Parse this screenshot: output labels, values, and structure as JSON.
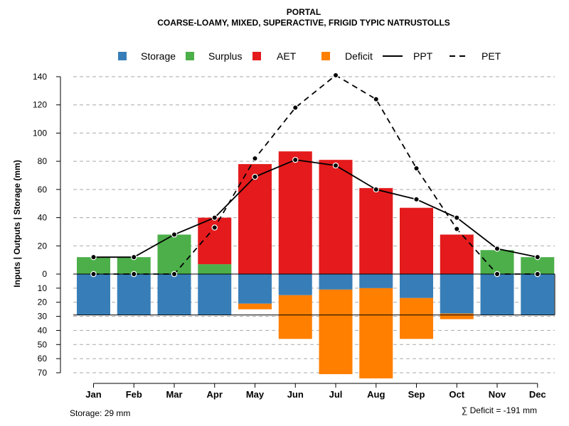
{
  "chart_data": {
    "type": "bar",
    "title": "PORTAL",
    "subtitle": "COARSE-LOAMY, MIXED, SUPERACTIVE, FRIGID TYPIC NATRUSTOLLS",
    "ylabel": "Inputs | Outputs | Storage    (mm)",
    "categories": [
      "Jan",
      "Feb",
      "Mar",
      "Apr",
      "May",
      "Jun",
      "Jul",
      "Aug",
      "Sep",
      "Oct",
      "Nov",
      "Dec"
    ],
    "upper_axis": {
      "ylim": [
        0,
        140
      ],
      "ticks": [
        "140",
        "120",
        "100",
        "80",
        "60",
        "40",
        "20",
        "0"
      ]
    },
    "lower_axis": {
      "ylim": [
        0,
        70
      ],
      "ticks": [
        "10",
        "20",
        "30",
        "40",
        "50",
        "60",
        "70"
      ]
    },
    "series": [
      {
        "name": "Storage",
        "color": "#377EB8",
        "position": "below",
        "values": [
          29,
          29,
          29,
          29,
          21,
          15,
          11,
          10,
          17,
          28,
          29,
          29
        ]
      },
      {
        "name": "Surplus",
        "color": "#4DAF4A",
        "position": "above",
        "values": [
          12,
          12,
          28,
          7,
          0,
          0,
          0,
          0,
          0,
          0,
          17,
          12
        ]
      },
      {
        "name": "AET",
        "color": "#E41A1C",
        "position": "above",
        "values": [
          0,
          0,
          0,
          33,
          78,
          87,
          81,
          61,
          47,
          28,
          0,
          0
        ]
      },
      {
        "name": "Deficit",
        "color": "#FF7F00",
        "position": "below",
        "values": [
          0,
          0,
          0,
          0,
          4,
          31,
          60,
          64,
          29,
          4,
          0,
          0
        ]
      },
      {
        "name": "PPT",
        "style": "solid",
        "values": [
          12,
          12,
          28,
          40,
          69,
          81,
          77,
          60,
          53,
          40,
          18,
          12
        ]
      },
      {
        "name": "PET",
        "style": "dashed",
        "values": [
          0,
          0,
          0,
          33,
          82,
          118,
          141,
          124,
          75,
          32,
          0,
          0
        ]
      }
    ],
    "storage_line": 29,
    "legend": [
      "Storage",
      "Surplus",
      "AET",
      "Deficit",
      "PPT",
      "PET"
    ],
    "legend_position": "top",
    "grid": true
  },
  "footer": {
    "storage_label": "Storage: 29 mm",
    "deficit_label": "∑ Deficit = -191 mm"
  }
}
